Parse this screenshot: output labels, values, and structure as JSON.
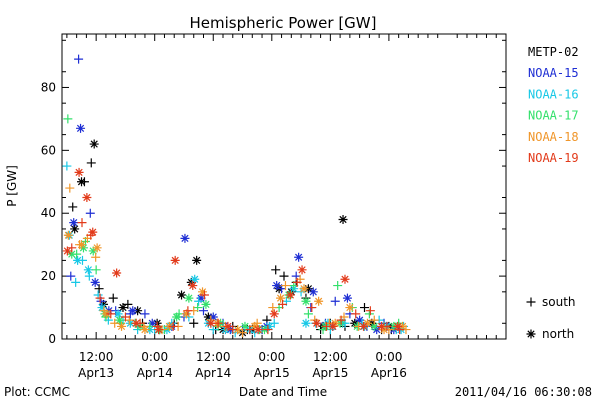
{
  "chart_data": {
    "type": "scatter",
    "title": "Hemispheric Power [GW]",
    "xlabel": "Date and Time",
    "ylabel": "P [GW]",
    "x_unit": "hours from 2011-04-13 00:00 UT",
    "xlim": [
      5,
      96
    ],
    "ylim": [
      0,
      97
    ],
    "x_ticks": [
      {
        "x": 12,
        "top": "12:00",
        "bottom": "Apr13"
      },
      {
        "x": 24,
        "top": "0:00",
        "bottom": "Apr14"
      },
      {
        "x": 36,
        "top": "12:00",
        "bottom": "Apr14"
      },
      {
        "x": 48,
        "top": "0:00",
        "bottom": "Apr15"
      },
      {
        "x": 60,
        "top": "12:00",
        "bottom": "Apr15"
      },
      {
        "x": 72,
        "top": "0:00",
        "bottom": "Apr16"
      }
    ],
    "y_ticks": [
      0,
      20,
      40,
      60,
      80
    ],
    "grid": false,
    "legend_position": "right",
    "marker_legend": [
      {
        "symbol": "+",
        "label": "south"
      },
      {
        "symbol": "*",
        "label": "north"
      }
    ],
    "series": [
      {
        "name": "METP-02",
        "color": "#000000",
        "south": [
          [
            7.2,
            42
          ],
          [
            9.6,
            50
          ],
          [
            11.0,
            56
          ],
          [
            12.6,
            16
          ],
          [
            15.5,
            13
          ],
          [
            18.5,
            11
          ],
          [
            21.5,
            5
          ],
          [
            25.0,
            3
          ],
          [
            28.0,
            5
          ],
          [
            32.0,
            5
          ],
          [
            36.5,
            3
          ],
          [
            40.0,
            4
          ],
          [
            43.0,
            3
          ],
          [
            46.0,
            3
          ],
          [
            47.0,
            6
          ],
          [
            48.8,
            22
          ],
          [
            50.5,
            20
          ],
          [
            53.0,
            18
          ],
          [
            55.0,
            13
          ],
          [
            58.0,
            3
          ],
          [
            60.0,
            5
          ],
          [
            63.0,
            4
          ],
          [
            67.0,
            10
          ],
          [
            70.5,
            3
          ],
          [
            72.5,
            3
          ]
        ],
        "north": [
          [
            7.6,
            35
          ],
          [
            9.0,
            50
          ],
          [
            11.6,
            62
          ],
          [
            13.5,
            11
          ],
          [
            17.5,
            10
          ],
          [
            20.5,
            9
          ],
          [
            24.5,
            5
          ],
          [
            29.5,
            14
          ],
          [
            31.5,
            18
          ],
          [
            32.6,
            25
          ],
          [
            35.0,
            7
          ],
          [
            38.0,
            3
          ],
          [
            42.0,
            2
          ],
          [
            44.0,
            3
          ],
          [
            49.5,
            16
          ],
          [
            52.0,
            15
          ],
          [
            55.5,
            16
          ],
          [
            58.5,
            4
          ],
          [
            62.6,
            38
          ],
          [
            65.0,
            5
          ],
          [
            68.5,
            5
          ],
          [
            72.0,
            4
          ]
        ]
      },
      {
        "name": "NOAA-15",
        "color": "#1f2fd4",
        "south": [
          [
            6.8,
            20
          ],
          [
            8.4,
            89
          ],
          [
            10.8,
            40
          ],
          [
            13.0,
            12
          ],
          [
            16.0,
            9
          ],
          [
            19.0,
            8
          ],
          [
            22.0,
            8
          ],
          [
            26.0,
            3
          ],
          [
            30.0,
            7
          ],
          [
            34.0,
            9
          ],
          [
            38.0,
            5
          ],
          [
            42.0,
            3
          ],
          [
            46.0,
            3
          ],
          [
            50.0,
            16
          ],
          [
            53.0,
            20
          ],
          [
            56.0,
            10
          ],
          [
            59.0,
            5
          ],
          [
            61.0,
            12
          ],
          [
            64.0,
            8
          ],
          [
            67.5,
            4
          ],
          [
            71.0,
            5
          ],
          [
            74.0,
            4
          ]
        ],
        "north": [
          [
            7.4,
            37
          ],
          [
            8.8,
            67
          ],
          [
            11.8,
            18
          ],
          [
            14.6,
            9
          ],
          [
            19.5,
            9
          ],
          [
            23.5,
            5
          ],
          [
            27.5,
            4
          ],
          [
            30.2,
            32
          ],
          [
            33.5,
            13
          ],
          [
            36.0,
            7
          ],
          [
            39.5,
            3
          ],
          [
            47.0,
            4
          ],
          [
            49.0,
            17
          ],
          [
            53.5,
            26
          ],
          [
            56.5,
            15
          ],
          [
            60.5,
            4
          ],
          [
            63.5,
            13
          ],
          [
            66.0,
            6
          ],
          [
            69.5,
            3
          ],
          [
            73.0,
            3
          ]
        ]
      },
      {
        "name": "NOAA-16",
        "color": "#17c8e6",
        "south": [
          [
            6.0,
            55
          ],
          [
            7.8,
            18
          ],
          [
            9.2,
            25
          ],
          [
            10.6,
            20
          ],
          [
            12.4,
            14
          ],
          [
            14.5,
            6
          ],
          [
            17.5,
            6
          ],
          [
            20.5,
            3
          ],
          [
            24.0,
            3
          ],
          [
            27.5,
            5
          ],
          [
            31.0,
            7
          ],
          [
            33.0,
            12
          ],
          [
            36.0,
            3
          ],
          [
            40.5,
            2
          ],
          [
            44.5,
            2
          ],
          [
            48.5,
            5
          ],
          [
            51.0,
            12
          ],
          [
            54.0,
            15
          ],
          [
            57.0,
            5
          ],
          [
            60.0,
            3
          ],
          [
            63.0,
            5
          ],
          [
            66.5,
            5
          ],
          [
            70.0,
            6
          ],
          [
            73.5,
            3
          ],
          [
            75.0,
            4
          ]
        ],
        "north": [
          [
            6.5,
            33
          ],
          [
            8.2,
            25
          ],
          [
            10.4,
            22
          ],
          [
            13.2,
            10
          ],
          [
            16.5,
            8
          ],
          [
            19.0,
            5
          ],
          [
            23.0,
            3
          ],
          [
            26.5,
            3
          ],
          [
            32.2,
            19
          ],
          [
            35.0,
            5
          ],
          [
            38.5,
            3
          ],
          [
            43.5,
            3
          ],
          [
            47.5,
            4
          ],
          [
            52.5,
            16
          ],
          [
            55.0,
            5
          ],
          [
            59.5,
            5
          ],
          [
            62.5,
            5
          ],
          [
            67.0,
            4
          ],
          [
            71.5,
            4
          ],
          [
            74.5,
            3
          ]
        ]
      },
      {
        "name": "NOAA-17",
        "color": "#33e06b",
        "south": [
          [
            6.2,
            70
          ],
          [
            8.0,
            27
          ],
          [
            9.8,
            31
          ],
          [
            12.0,
            22
          ],
          [
            14.0,
            7
          ],
          [
            17.0,
            5
          ],
          [
            20.0,
            5
          ],
          [
            23.0,
            4
          ],
          [
            26.0,
            3
          ],
          [
            29.0,
            8
          ],
          [
            32.8,
            10
          ],
          [
            37.0,
            4
          ],
          [
            41.0,
            3
          ],
          [
            45.5,
            3
          ],
          [
            49.5,
            10
          ],
          [
            52.5,
            17
          ],
          [
            55.5,
            8
          ],
          [
            58.5,
            3
          ],
          [
            61.5,
            17
          ],
          [
            64.5,
            10
          ],
          [
            68.0,
            8
          ],
          [
            71.0,
            4
          ],
          [
            74.0,
            5
          ]
        ],
        "north": [
          [
            7.0,
            27
          ],
          [
            9.4,
            29
          ],
          [
            11.4,
            28
          ],
          [
            13.8,
            8
          ],
          [
            16.8,
            6
          ],
          [
            21.0,
            4
          ],
          [
            25.0,
            3
          ],
          [
            28.5,
            7
          ],
          [
            31.0,
            13
          ],
          [
            34.5,
            11
          ],
          [
            37.5,
            5
          ],
          [
            42.5,
            4
          ],
          [
            46.5,
            3
          ],
          [
            51.5,
            14
          ],
          [
            55.0,
            12
          ],
          [
            59.0,
            4
          ],
          [
            62.0,
            5
          ],
          [
            65.5,
            4
          ],
          [
            69.0,
            4
          ],
          [
            73.0,
            4
          ]
        ]
      },
      {
        "name": "NOAA-18",
        "color": "#f0962a",
        "south": [
          [
            6.6,
            48
          ],
          [
            8.6,
            30
          ],
          [
            10.2,
            32
          ],
          [
            11.9,
            26
          ],
          [
            13.6,
            9
          ],
          [
            15.8,
            5
          ],
          [
            18.8,
            6
          ],
          [
            21.8,
            4
          ],
          [
            25.5,
            3
          ],
          [
            28.8,
            4
          ],
          [
            32.0,
            9
          ],
          [
            35.5,
            6
          ],
          [
            38.5,
            4
          ],
          [
            42.0,
            2
          ],
          [
            45.0,
            5
          ],
          [
            48.2,
            10
          ],
          [
            50.8,
            17
          ],
          [
            53.8,
            19
          ],
          [
            56.8,
            6
          ],
          [
            59.8,
            5
          ],
          [
            62.8,
            7
          ],
          [
            65.8,
            4
          ],
          [
            69.0,
            6
          ],
          [
            72.0,
            3
          ],
          [
            75.5,
            3
          ]
        ],
        "north": [
          [
            6.3,
            33
          ],
          [
            9.0,
            30
          ],
          [
            12.2,
            29
          ],
          [
            14.2,
            8
          ],
          [
            17.2,
            4
          ],
          [
            22.0,
            3
          ],
          [
            27.0,
            4
          ],
          [
            30.5,
            8
          ],
          [
            33.8,
            15
          ],
          [
            36.8,
            5
          ],
          [
            41.0,
            3
          ],
          [
            44.5,
            4
          ],
          [
            49.8,
            13
          ],
          [
            54.6,
            16
          ],
          [
            57.6,
            12
          ],
          [
            61.0,
            5
          ],
          [
            64.0,
            10
          ],
          [
            67.6,
            5
          ],
          [
            71.0,
            3
          ],
          [
            74.8,
            4
          ]
        ]
      },
      {
        "name": "NOAA-19",
        "color": "#e23a1a",
        "south": [
          [
            7.0,
            29
          ],
          [
            9.1,
            37
          ],
          [
            10.9,
            33
          ],
          [
            12.8,
            13
          ],
          [
            15.0,
            8
          ],
          [
            18.0,
            7
          ],
          [
            21.0,
            5
          ],
          [
            24.5,
            4
          ],
          [
            27.8,
            4
          ],
          [
            30.8,
            9
          ],
          [
            34.2,
            14
          ],
          [
            37.0,
            5
          ],
          [
            40.0,
            3
          ],
          [
            43.5,
            3
          ],
          [
            47.2,
            3
          ],
          [
            50.2,
            11
          ],
          [
            53.2,
            18
          ],
          [
            56.2,
            10
          ],
          [
            59.2,
            4
          ],
          [
            62.2,
            6
          ],
          [
            65.2,
            8
          ],
          [
            68.2,
            9
          ],
          [
            71.6,
            4
          ],
          [
            74.2,
            3
          ]
        ],
        "north": [
          [
            6.1,
            28
          ],
          [
            8.5,
            53
          ],
          [
            10.1,
            45
          ],
          [
            11.3,
            34
          ],
          [
            16.2,
            21
          ],
          [
            20.2,
            5
          ],
          [
            24.8,
            3
          ],
          [
            28.2,
            25
          ],
          [
            31.8,
            17
          ],
          [
            35.5,
            5
          ],
          [
            39.0,
            4
          ],
          [
            45.2,
            3
          ],
          [
            48.5,
            8
          ],
          [
            51.8,
            14
          ],
          [
            54.2,
            22
          ],
          [
            57.2,
            5
          ],
          [
            60.5,
            4
          ],
          [
            63.0,
            19
          ],
          [
            66.8,
            4
          ],
          [
            70.5,
            4
          ],
          [
            73.8,
            4
          ]
        ]
      }
    ]
  },
  "footer": {
    "left": "Plot: CCMC",
    "right": "2011/04/16 06:30:08"
  }
}
